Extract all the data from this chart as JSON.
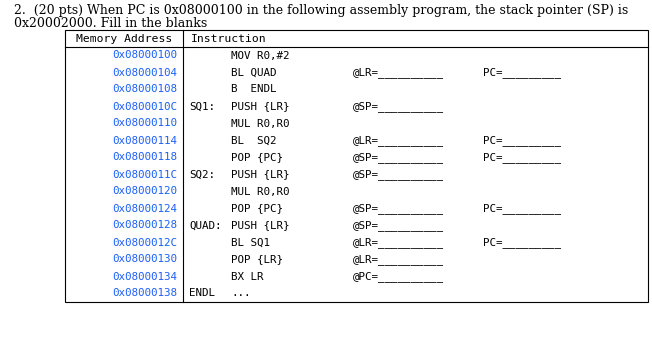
{
  "title_line1": "2.  (20 pts) When PC is 0x08000100 in the following assembly program, the stack pointer (SP) is",
  "title_line2": "0x20002000. Fill in the blanks",
  "col1_header": "Memory Address",
  "col2_header": "Instruction",
  "rows": [
    {
      "addr": "0x08000100",
      "label": "",
      "instr": "MOV R0,#2",
      "extra1": "",
      "extra2": ""
    },
    {
      "addr": "0x08000104",
      "label": "",
      "instr": "BL QUAD",
      "extra1": "@LR=__________",
      "extra2": "PC=_________"
    },
    {
      "addr": "0x08000108",
      "label": "",
      "instr": "B  ENDL",
      "extra1": "",
      "extra2": ""
    },
    {
      "addr": "0x0800010C",
      "label": "SQ1:",
      "instr": "PUSH {LR}",
      "extra1": "@SP=__________",
      "extra2": ""
    },
    {
      "addr": "0x08000110",
      "label": "",
      "instr": "MUL R0,R0",
      "extra1": "",
      "extra2": ""
    },
    {
      "addr": "0x08000114",
      "label": "",
      "instr": "BL  SQ2",
      "extra1": "@LR=__________",
      "extra2": "PC=_________"
    },
    {
      "addr": "0x08000118",
      "label": "",
      "instr": "POP {PC}",
      "extra1": "@SP=__________",
      "extra2": "PC=_________"
    },
    {
      "addr": "0x0800011C",
      "label": "SQ2:",
      "instr": "PUSH {LR}",
      "extra1": "@SP=__________",
      "extra2": ""
    },
    {
      "addr": "0x08000120",
      "label": "",
      "instr": "MUL R0,R0",
      "extra1": "",
      "extra2": ""
    },
    {
      "addr": "0x08000124",
      "label": "",
      "instr": "POP {PC}",
      "extra1": "@SP=__________",
      "extra2": "PC=_________"
    },
    {
      "addr": "0x08000128",
      "label": "QUAD:",
      "instr": "PUSH {LR}",
      "extra1": "@SP=__________",
      "extra2": ""
    },
    {
      "addr": "0x0800012C",
      "label": "",
      "instr": "BL SQ1",
      "extra1": "@LR=__________",
      "extra2": "PC=_________"
    },
    {
      "addr": "0x08000130",
      "label": "",
      "instr": "POP {LR}",
      "extra1": "@LR=__________",
      "extra2": ""
    },
    {
      "addr": "0x08000134",
      "label": "",
      "instr": "BX LR",
      "extra1": "@PC=__________",
      "extra2": ""
    },
    {
      "addr": "0x08000138",
      "label": "ENDL",
      "instr": "...",
      "extra1": "",
      "extra2": ""
    }
  ],
  "bg_color": "#ffffff",
  "text_color": "#000000",
  "mono_color": "#1a5fff",
  "header_color": "#000000",
  "table_border_color": "#000000",
  "title_fontsize": 9.0,
  "mono_fontsize": 7.8,
  "header_fontsize": 8.2
}
